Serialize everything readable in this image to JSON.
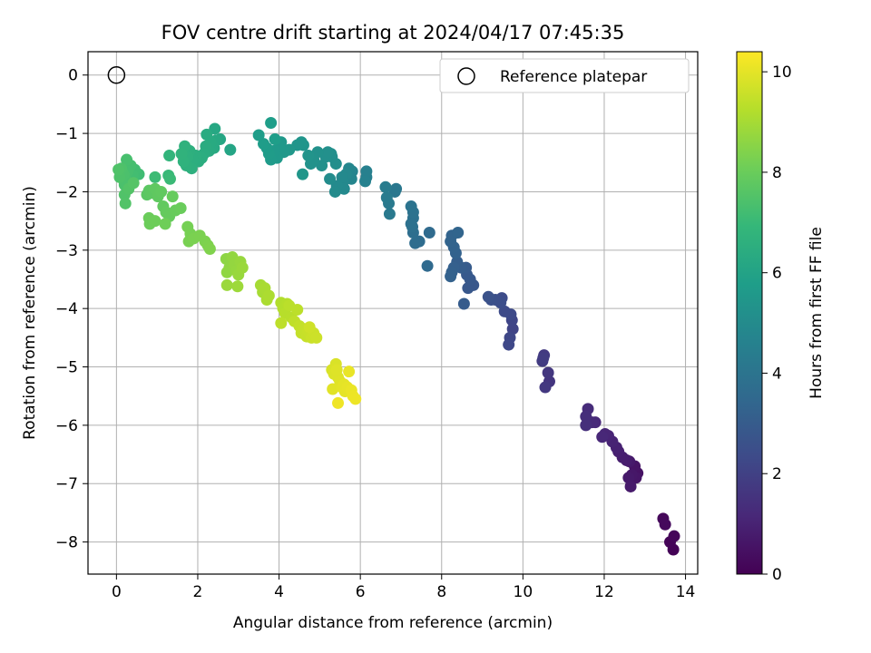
{
  "chart_data": {
    "type": "scatter",
    "title": "FOV centre drift starting at 2024/04/17 07:45:35",
    "xlabel": "Angular distance from reference (arcmin)",
    "ylabel": "Rotation from reference (arcmin)",
    "xlim": [
      -0.7,
      14.3
    ],
    "ylim": [
      -8.55,
      0.4
    ],
    "xticks": [
      0,
      2,
      4,
      6,
      8,
      10,
      12,
      14
    ],
    "yticks": [
      0,
      -1,
      -2,
      -3,
      -4,
      -5,
      -6,
      -7,
      -8
    ],
    "grid": true,
    "legend": {
      "location": "upper right",
      "entries": [
        "Reference platepar"
      ]
    },
    "reference_point": {
      "x": 0,
      "y": 0,
      "marker": "open-circle"
    },
    "colorbar": {
      "label": "Hours from first FF file",
      "range": [
        0,
        10.4
      ],
      "ticks": [
        0,
        2,
        4,
        6,
        8,
        10
      ],
      "colormap": "viridis"
    },
    "colormap_stops": [
      "#440154",
      "#482878",
      "#3e4a89",
      "#31688e",
      "#26828e",
      "#1f9e89",
      "#35b779",
      "#6ece58",
      "#b5de2b",
      "#fde725"
    ],
    "points": [
      {
        "x": 13.7,
        "y": -8.13,
        "t": 0.05
      },
      {
        "x": 13.62,
        "y": -8.0,
        "t": 0.1
      },
      {
        "x": 13.72,
        "y": -7.9,
        "t": 0.15
      },
      {
        "x": 13.45,
        "y": -7.6,
        "t": 0.2
      },
      {
        "x": 13.5,
        "y": -7.7,
        "t": 0.25
      },
      {
        "x": 12.82,
        "y": -6.82,
        "t": 0.5
      },
      {
        "x": 12.75,
        "y": -6.7,
        "t": 0.55
      },
      {
        "x": 12.78,
        "y": -6.9,
        "t": 0.6
      },
      {
        "x": 12.68,
        "y": -6.85,
        "t": 0.65
      },
      {
        "x": 12.62,
        "y": -6.62,
        "t": 0.7
      },
      {
        "x": 12.6,
        "y": -6.9,
        "t": 0.72
      },
      {
        "x": 12.65,
        "y": -7.05,
        "t": 0.75
      },
      {
        "x": 12.55,
        "y": -6.6,
        "t": 0.8
      },
      {
        "x": 12.45,
        "y": -6.55,
        "t": 0.85
      },
      {
        "x": 12.35,
        "y": -6.45,
        "t": 0.9
      },
      {
        "x": 12.3,
        "y": -6.38,
        "t": 0.95
      },
      {
        "x": 12.2,
        "y": -6.28,
        "t": 1.0
      },
      {
        "x": 12.1,
        "y": -6.18,
        "t": 1.05
      },
      {
        "x": 12.02,
        "y": -6.15,
        "t": 1.1
      },
      {
        "x": 11.95,
        "y": -6.2,
        "t": 1.15
      },
      {
        "x": 11.78,
        "y": -5.95,
        "t": 1.2
      },
      {
        "x": 11.7,
        "y": -5.95,
        "t": 1.25
      },
      {
        "x": 11.6,
        "y": -5.72,
        "t": 1.3
      },
      {
        "x": 11.55,
        "y": -5.85,
        "t": 1.35
      },
      {
        "x": 11.55,
        "y": -6.0,
        "t": 1.38
      },
      {
        "x": 10.65,
        "y": -5.25,
        "t": 1.6
      },
      {
        "x": 10.62,
        "y": -5.1,
        "t": 1.65
      },
      {
        "x": 10.55,
        "y": -5.35,
        "t": 1.7
      },
      {
        "x": 10.52,
        "y": -4.8,
        "t": 1.75
      },
      {
        "x": 10.48,
        "y": -4.9,
        "t": 1.8
      },
      {
        "x": 10.5,
        "y": -4.85,
        "t": 1.82
      },
      {
        "x": 9.75,
        "y": -4.35,
        "t": 2.1
      },
      {
        "x": 9.73,
        "y": -4.2,
        "t": 2.15
      },
      {
        "x": 9.68,
        "y": -4.5,
        "t": 2.2
      },
      {
        "x": 9.65,
        "y": -4.62,
        "t": 2.25
      },
      {
        "x": 9.7,
        "y": -4.1,
        "t": 2.3
      },
      {
        "x": 9.55,
        "y": -4.05,
        "t": 2.35
      },
      {
        "x": 9.48,
        "y": -3.82,
        "t": 2.4
      },
      {
        "x": 9.45,
        "y": -3.9,
        "t": 2.45
      },
      {
        "x": 9.32,
        "y": -3.85,
        "t": 2.5
      },
      {
        "x": 9.22,
        "y": -3.85,
        "t": 2.55
      },
      {
        "x": 9.15,
        "y": -3.8,
        "t": 2.6
      },
      {
        "x": 8.78,
        "y": -3.6,
        "t": 2.8
      },
      {
        "x": 8.65,
        "y": -3.65,
        "t": 2.82
      },
      {
        "x": 8.7,
        "y": -3.5,
        "t": 2.85
      },
      {
        "x": 8.62,
        "y": -3.42,
        "t": 2.9
      },
      {
        "x": 8.6,
        "y": -3.3,
        "t": 2.95
      },
      {
        "x": 8.55,
        "y": -3.92,
        "t": 3.0
      },
      {
        "x": 8.48,
        "y": -3.3,
        "t": 3.05
      },
      {
        "x": 8.38,
        "y": -3.2,
        "t": 3.1
      },
      {
        "x": 8.3,
        "y": -3.3,
        "t": 3.15
      },
      {
        "x": 8.25,
        "y": -3.38,
        "t": 3.2
      },
      {
        "x": 8.22,
        "y": -3.45,
        "t": 3.22
      },
      {
        "x": 8.35,
        "y": -3.05,
        "t": 3.25
      },
      {
        "x": 8.3,
        "y": -2.95,
        "t": 3.28
      },
      {
        "x": 8.22,
        "y": -2.85,
        "t": 3.3
      },
      {
        "x": 8.25,
        "y": -2.75,
        "t": 3.32
      },
      {
        "x": 8.4,
        "y": -2.7,
        "t": 3.35
      },
      {
        "x": 7.65,
        "y": -3.27,
        "t": 3.55
      },
      {
        "x": 7.7,
        "y": -2.7,
        "t": 3.6
      },
      {
        "x": 7.45,
        "y": -2.85,
        "t": 3.65
      },
      {
        "x": 7.35,
        "y": -2.88,
        "t": 3.7
      },
      {
        "x": 7.3,
        "y": -2.7,
        "t": 3.75
      },
      {
        "x": 7.28,
        "y": -2.6,
        "t": 3.8
      },
      {
        "x": 7.3,
        "y": -2.45,
        "t": 3.85
      },
      {
        "x": 7.25,
        "y": -2.55,
        "t": 3.88
      },
      {
        "x": 7.3,
        "y": -2.35,
        "t": 3.9
      },
      {
        "x": 7.25,
        "y": -2.25,
        "t": 3.95
      },
      {
        "x": 6.85,
        "y": -2.0,
        "t": 4.1
      },
      {
        "x": 6.88,
        "y": -1.95,
        "t": 4.15
      },
      {
        "x": 6.72,
        "y": -2.38,
        "t": 4.2
      },
      {
        "x": 6.7,
        "y": -2.2,
        "t": 4.25
      },
      {
        "x": 6.65,
        "y": -2.1,
        "t": 4.3
      },
      {
        "x": 6.62,
        "y": -1.92,
        "t": 4.35
      },
      {
        "x": 6.15,
        "y": -1.75,
        "t": 4.5
      },
      {
        "x": 6.15,
        "y": -1.65,
        "t": 4.55
      },
      {
        "x": 6.12,
        "y": -1.82,
        "t": 4.6
      },
      {
        "x": 5.8,
        "y": -1.65,
        "t": 4.7
      },
      {
        "x": 5.78,
        "y": -1.78,
        "t": 4.75
      },
      {
        "x": 5.72,
        "y": -1.6,
        "t": 4.8
      },
      {
        "x": 5.65,
        "y": -1.7,
        "t": 4.85
      },
      {
        "x": 5.58,
        "y": -1.82,
        "t": 4.88
      },
      {
        "x": 5.55,
        "y": -1.75,
        "t": 4.9
      },
      {
        "x": 5.6,
        "y": -1.95,
        "t": 4.92
      },
      {
        "x": 5.42,
        "y": -1.9,
        "t": 4.95
      },
      {
        "x": 5.38,
        "y": -2.0,
        "t": 5.0
      },
      {
        "x": 5.25,
        "y": -1.78,
        "t": 5.05
      },
      {
        "x": 5.4,
        "y": -1.52,
        "t": 5.1
      },
      {
        "x": 5.3,
        "y": -1.4,
        "t": 5.12
      },
      {
        "x": 5.28,
        "y": -1.35,
        "t": 5.15
      },
      {
        "x": 5.15,
        "y": -1.4,
        "t": 5.18
      },
      {
        "x": 5.2,
        "y": -1.32,
        "t": 5.2
      },
      {
        "x": 5.05,
        "y": -1.55,
        "t": 5.22
      },
      {
        "x": 4.95,
        "y": -1.32,
        "t": 5.25
      },
      {
        "x": 4.85,
        "y": -1.45,
        "t": 5.28
      },
      {
        "x": 4.78,
        "y": -1.52,
        "t": 5.3
      },
      {
        "x": 4.72,
        "y": -1.38,
        "t": 5.35
      },
      {
        "x": 4.6,
        "y": -1.2,
        "t": 5.38
      },
      {
        "x": 4.55,
        "y": -1.15,
        "t": 5.4
      },
      {
        "x": 4.45,
        "y": -1.2,
        "t": 5.42
      },
      {
        "x": 4.58,
        "y": -1.7,
        "t": 5.45
      },
      {
        "x": 4.25,
        "y": -1.28,
        "t": 5.5
      },
      {
        "x": 4.12,
        "y": -1.32,
        "t": 5.52
      },
      {
        "x": 4.05,
        "y": -1.15,
        "t": 5.55
      },
      {
        "x": 4.0,
        "y": -1.25,
        "t": 5.58
      },
      {
        "x": 3.95,
        "y": -1.42,
        "t": 5.6
      },
      {
        "x": 3.88,
        "y": -1.3,
        "t": 5.62
      },
      {
        "x": 3.8,
        "y": -1.45,
        "t": 5.65
      },
      {
        "x": 3.75,
        "y": -1.35,
        "t": 5.68
      },
      {
        "x": 3.7,
        "y": -1.25,
        "t": 5.7
      },
      {
        "x": 3.62,
        "y": -1.18,
        "t": 5.72
      },
      {
        "x": 3.5,
        "y": -1.03,
        "t": 5.75
      },
      {
        "x": 3.8,
        "y": -0.82,
        "t": 5.78
      },
      {
        "x": 3.9,
        "y": -1.1,
        "t": 5.8
      },
      {
        "x": 2.8,
        "y": -1.28,
        "t": 6.1
      },
      {
        "x": 2.55,
        "y": -1.1,
        "t": 6.15
      },
      {
        "x": 2.42,
        "y": -0.92,
        "t": 6.2
      },
      {
        "x": 2.45,
        "y": -1.12,
        "t": 6.25
      },
      {
        "x": 2.4,
        "y": -1.25,
        "t": 6.3
      },
      {
        "x": 2.32,
        "y": -1.15,
        "t": 6.32
      },
      {
        "x": 2.28,
        "y": -1.3,
        "t": 6.35
      },
      {
        "x": 2.22,
        "y": -1.02,
        "t": 6.38
      },
      {
        "x": 2.2,
        "y": -1.22,
        "t": 6.4
      },
      {
        "x": 2.15,
        "y": -1.35,
        "t": 6.42
      },
      {
        "x": 2.1,
        "y": -1.42,
        "t": 6.45
      },
      {
        "x": 2.02,
        "y": -1.48,
        "t": 6.48
      },
      {
        "x": 1.95,
        "y": -1.38,
        "t": 6.5
      },
      {
        "x": 1.88,
        "y": -1.45,
        "t": 6.52
      },
      {
        "x": 1.85,
        "y": -1.6,
        "t": 6.55
      },
      {
        "x": 1.8,
        "y": -1.3,
        "t": 6.58
      },
      {
        "x": 1.75,
        "y": -1.4,
        "t": 6.6
      },
      {
        "x": 1.72,
        "y": -1.55,
        "t": 6.62
      },
      {
        "x": 1.68,
        "y": -1.22,
        "t": 6.65
      },
      {
        "x": 1.65,
        "y": -1.48,
        "t": 6.68
      },
      {
        "x": 1.6,
        "y": -1.35,
        "t": 6.7
      },
      {
        "x": 1.3,
        "y": -1.38,
        "t": 6.8
      },
      {
        "x": 1.28,
        "y": -1.72,
        "t": 7.0
      },
      {
        "x": 1.32,
        "y": -1.78,
        "t": 7.05
      },
      {
        "x": 0.95,
        "y": -1.75,
        "t": 7.1
      },
      {
        "x": 0.55,
        "y": -1.7,
        "t": 7.15
      },
      {
        "x": 0.45,
        "y": -1.62,
        "t": 7.2
      },
      {
        "x": 0.4,
        "y": -1.72,
        "t": 7.22
      },
      {
        "x": 0.38,
        "y": -1.85,
        "t": 7.25
      },
      {
        "x": 0.35,
        "y": -1.55,
        "t": 7.28
      },
      {
        "x": 0.28,
        "y": -1.65,
        "t": 7.3
      },
      {
        "x": 0.25,
        "y": -1.45,
        "t": 7.32
      },
      {
        "x": 0.22,
        "y": -1.78,
        "t": 7.35
      },
      {
        "x": 0.2,
        "y": -1.88,
        "t": 7.38
      },
      {
        "x": 0.18,
        "y": -1.7,
        "t": 7.4
      },
      {
        "x": 0.12,
        "y": -1.6,
        "t": 7.42
      },
      {
        "x": 0.08,
        "y": -1.75,
        "t": 7.45
      },
      {
        "x": 0.05,
        "y": -1.62,
        "t": 7.48
      },
      {
        "x": 0.2,
        "y": -2.05,
        "t": 7.5
      },
      {
        "x": 0.22,
        "y": -2.2,
        "t": 7.52
      },
      {
        "x": 0.3,
        "y": -1.95,
        "t": 7.55
      },
      {
        "x": 0.42,
        "y": -1.85,
        "t": 7.58
      },
      {
        "x": 0.75,
        "y": -2.05,
        "t": 7.7
      },
      {
        "x": 0.8,
        "y": -1.98,
        "t": 7.72
      },
      {
        "x": 0.85,
        "y": -2.02,
        "t": 7.75
      },
      {
        "x": 0.95,
        "y": -1.95,
        "t": 7.78
      },
      {
        "x": 1.02,
        "y": -2.08,
        "t": 7.8
      },
      {
        "x": 1.1,
        "y": -2.0,
        "t": 7.82
      },
      {
        "x": 1.15,
        "y": -2.25,
        "t": 7.85
      },
      {
        "x": 1.22,
        "y": -2.35,
        "t": 7.88
      },
      {
        "x": 1.3,
        "y": -2.42,
        "t": 7.9
      },
      {
        "x": 1.38,
        "y": -2.08,
        "t": 7.92
      },
      {
        "x": 1.45,
        "y": -2.32,
        "t": 7.95
      },
      {
        "x": 1.58,
        "y": -2.28,
        "t": 7.98
      },
      {
        "x": 0.8,
        "y": -2.45,
        "t": 8.0
      },
      {
        "x": 0.82,
        "y": -2.55,
        "t": 8.02
      },
      {
        "x": 0.95,
        "y": -2.5,
        "t": 8.05
      },
      {
        "x": 1.2,
        "y": -2.55,
        "t": 8.08
      },
      {
        "x": 1.75,
        "y": -2.6,
        "t": 8.2
      },
      {
        "x": 1.82,
        "y": -2.72,
        "t": 8.22
      },
      {
        "x": 1.78,
        "y": -2.85,
        "t": 8.25
      },
      {
        "x": 1.9,
        "y": -2.8,
        "t": 8.28
      },
      {
        "x": 2.05,
        "y": -2.75,
        "t": 8.3
      },
      {
        "x": 2.18,
        "y": -2.85,
        "t": 8.32
      },
      {
        "x": 2.25,
        "y": -2.92,
        "t": 8.35
      },
      {
        "x": 2.3,
        "y": -2.98,
        "t": 8.38
      },
      {
        "x": 2.7,
        "y": -3.15,
        "t": 8.6
      },
      {
        "x": 2.78,
        "y": -3.3,
        "t": 8.62
      },
      {
        "x": 2.72,
        "y": -3.38,
        "t": 8.65
      },
      {
        "x": 2.85,
        "y": -3.12,
        "t": 8.68
      },
      {
        "x": 2.9,
        "y": -3.25,
        "t": 8.7
      },
      {
        "x": 2.95,
        "y": -3.35,
        "t": 8.72
      },
      {
        "x": 3.05,
        "y": -3.2,
        "t": 8.75
      },
      {
        "x": 3.0,
        "y": -3.42,
        "t": 8.78
      },
      {
        "x": 3.1,
        "y": -3.3,
        "t": 8.8
      },
      {
        "x": 2.72,
        "y": -3.6,
        "t": 8.82
      },
      {
        "x": 2.98,
        "y": -3.62,
        "t": 8.85
      },
      {
        "x": 3.55,
        "y": -3.6,
        "t": 9.0
      },
      {
        "x": 3.6,
        "y": -3.72,
        "t": 9.02
      },
      {
        "x": 3.65,
        "y": -3.65,
        "t": 9.05
      },
      {
        "x": 3.7,
        "y": -3.85,
        "t": 9.08
      },
      {
        "x": 3.75,
        "y": -3.78,
        "t": 9.1
      },
      {
        "x": 4.05,
        "y": -3.9,
        "t": 9.2
      },
      {
        "x": 4.1,
        "y": -4.0,
        "t": 9.22
      },
      {
        "x": 4.2,
        "y": -3.92,
        "t": 9.25
      },
      {
        "x": 4.15,
        "y": -4.08,
        "t": 9.28
      },
      {
        "x": 4.3,
        "y": -4.15,
        "t": 9.3
      },
      {
        "x": 4.25,
        "y": -3.95,
        "t": 9.32
      },
      {
        "x": 4.45,
        "y": -4.02,
        "t": 9.35
      },
      {
        "x": 4.05,
        "y": -4.25,
        "t": 9.38
      },
      {
        "x": 4.38,
        "y": -4.22,
        "t": 9.4
      },
      {
        "x": 4.5,
        "y": -4.3,
        "t": 9.45
      },
      {
        "x": 4.55,
        "y": -4.42,
        "t": 9.48
      },
      {
        "x": 4.6,
        "y": -4.35,
        "t": 9.5
      },
      {
        "x": 4.68,
        "y": -4.48,
        "t": 9.52
      },
      {
        "x": 4.72,
        "y": -4.38,
        "t": 9.55
      },
      {
        "x": 4.8,
        "y": -4.5,
        "t": 9.58
      },
      {
        "x": 4.85,
        "y": -4.42,
        "t": 9.6
      },
      {
        "x": 4.92,
        "y": -4.5,
        "t": 9.62
      },
      {
        "x": 4.75,
        "y": -4.32,
        "t": 9.65
      },
      {
        "x": 5.3,
        "y": -5.05,
        "t": 9.8
      },
      {
        "x": 5.4,
        "y": -4.95,
        "t": 9.82
      },
      {
        "x": 5.35,
        "y": -5.12,
        "t": 9.85
      },
      {
        "x": 5.45,
        "y": -5.18,
        "t": 9.88
      },
      {
        "x": 5.42,
        "y": -5.05,
        "t": 9.9
      },
      {
        "x": 5.5,
        "y": -5.25,
        "t": 9.92
      },
      {
        "x": 5.32,
        "y": -5.38,
        "t": 9.95
      },
      {
        "x": 5.55,
        "y": -5.35,
        "t": 9.98
      },
      {
        "x": 5.6,
        "y": -5.3,
        "t": 10.0
      },
      {
        "x": 5.62,
        "y": -5.42,
        "t": 10.02
      },
      {
        "x": 5.68,
        "y": -5.35,
        "t": 10.05
      },
      {
        "x": 5.72,
        "y": -5.08,
        "t": 10.08
      },
      {
        "x": 5.78,
        "y": -5.4,
        "t": 10.1
      },
      {
        "x": 5.82,
        "y": -5.5,
        "t": 10.12
      },
      {
        "x": 5.88,
        "y": -5.55,
        "t": 10.15
      },
      {
        "x": 5.45,
        "y": -5.62,
        "t": 10.18
      }
    ]
  }
}
